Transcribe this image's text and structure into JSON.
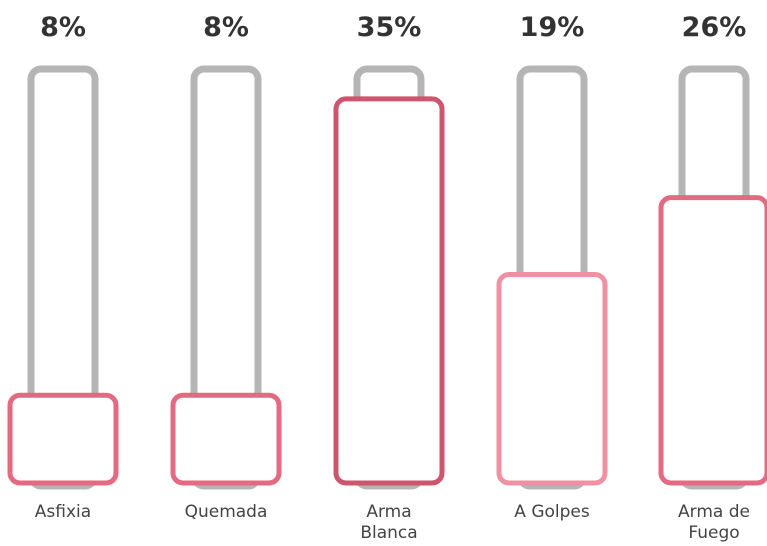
{
  "chart_data": {
    "type": "bar",
    "categories": [
      "Asfixia",
      "Quemada",
      "Arma Blanca",
      "A Golpes",
      "Arma de Fuego"
    ],
    "values": [
      8,
      8,
      35,
      19,
      26
    ],
    "value_labels": [
      "8%",
      "8%",
      "35%",
      "19%",
      "26%"
    ],
    "ylim": [
      0,
      38
    ],
    "title": "",
    "xlabel": "",
    "ylabel": "",
    "grid": false,
    "colors": {
      "track": "#b5b5b5",
      "bars": [
        "#e46a82",
        "#e46a82",
        "#cc566e",
        "#ef90a3",
        "#e46a82"
      ],
      "text_value": "#333333",
      "text_category": "#444444"
    }
  }
}
